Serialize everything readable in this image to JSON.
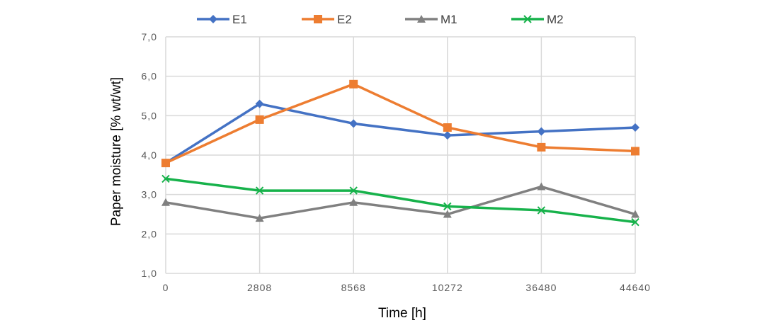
{
  "chart_data": {
    "type": "line",
    "categories": [
      "0",
      "2808",
      "8568",
      "10272",
      "36480",
      "44640"
    ],
    "xlabel": "Time [h]",
    "ylabel": "Paper moisture [% wt/wt]",
    "ylim": [
      1.0,
      7.0
    ],
    "yticks": [
      "1,0",
      "2,0",
      "3,0",
      "4,0",
      "5,0",
      "6,0",
      "7,0"
    ],
    "grid": true,
    "legend_position": "top",
    "series": [
      {
        "name": "E1",
        "color": "#4472C4",
        "marker": "diamond",
        "values": [
          3.8,
          5.3,
          4.8,
          4.5,
          4.6,
          4.7
        ]
      },
      {
        "name": "E2",
        "color": "#ED7D31",
        "marker": "square",
        "values": [
          3.8,
          4.9,
          5.8,
          4.7,
          4.2,
          4.1
        ]
      },
      {
        "name": "M1",
        "color": "#808080",
        "marker": "triangle",
        "values": [
          2.8,
          2.4,
          2.8,
          2.5,
          3.2,
          2.5
        ]
      },
      {
        "name": "M2",
        "color": "#17B24B",
        "marker": "x",
        "values": [
          3.4,
          3.1,
          3.1,
          2.7,
          2.6,
          2.3
        ]
      }
    ]
  }
}
